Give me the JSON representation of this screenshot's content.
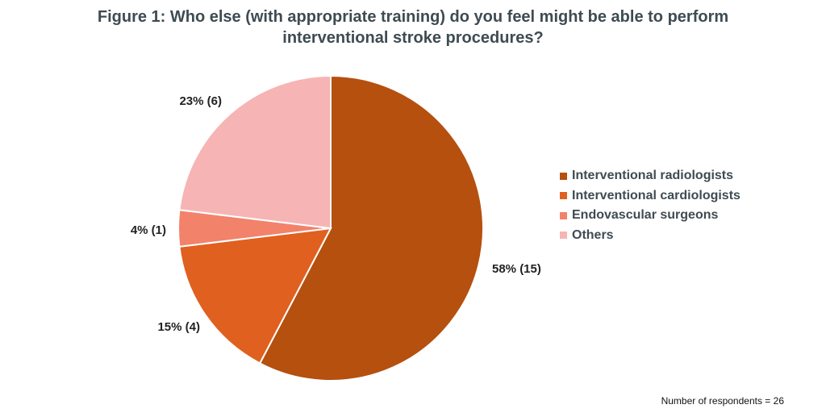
{
  "chart_data": {
    "type": "pie",
    "title": "Figure 1: Who else (with appropriate training) do you feel might be able to perform interventional stroke procedures?",
    "categories": [
      "Interventional radiologists",
      "Interventional cardiologists",
      "Endovascular surgeons",
      "Others"
    ],
    "values": [
      15,
      4,
      1,
      6
    ],
    "labels": [
      "58% (15)",
      "15% (4)",
      "4% (1)",
      "23% (6)"
    ],
    "colors": [
      "#b5500f",
      "#e0601f",
      "#f2826a",
      "#f7b4b4"
    ],
    "legend_position": "right",
    "footnote": "Number of respondents = 26"
  }
}
